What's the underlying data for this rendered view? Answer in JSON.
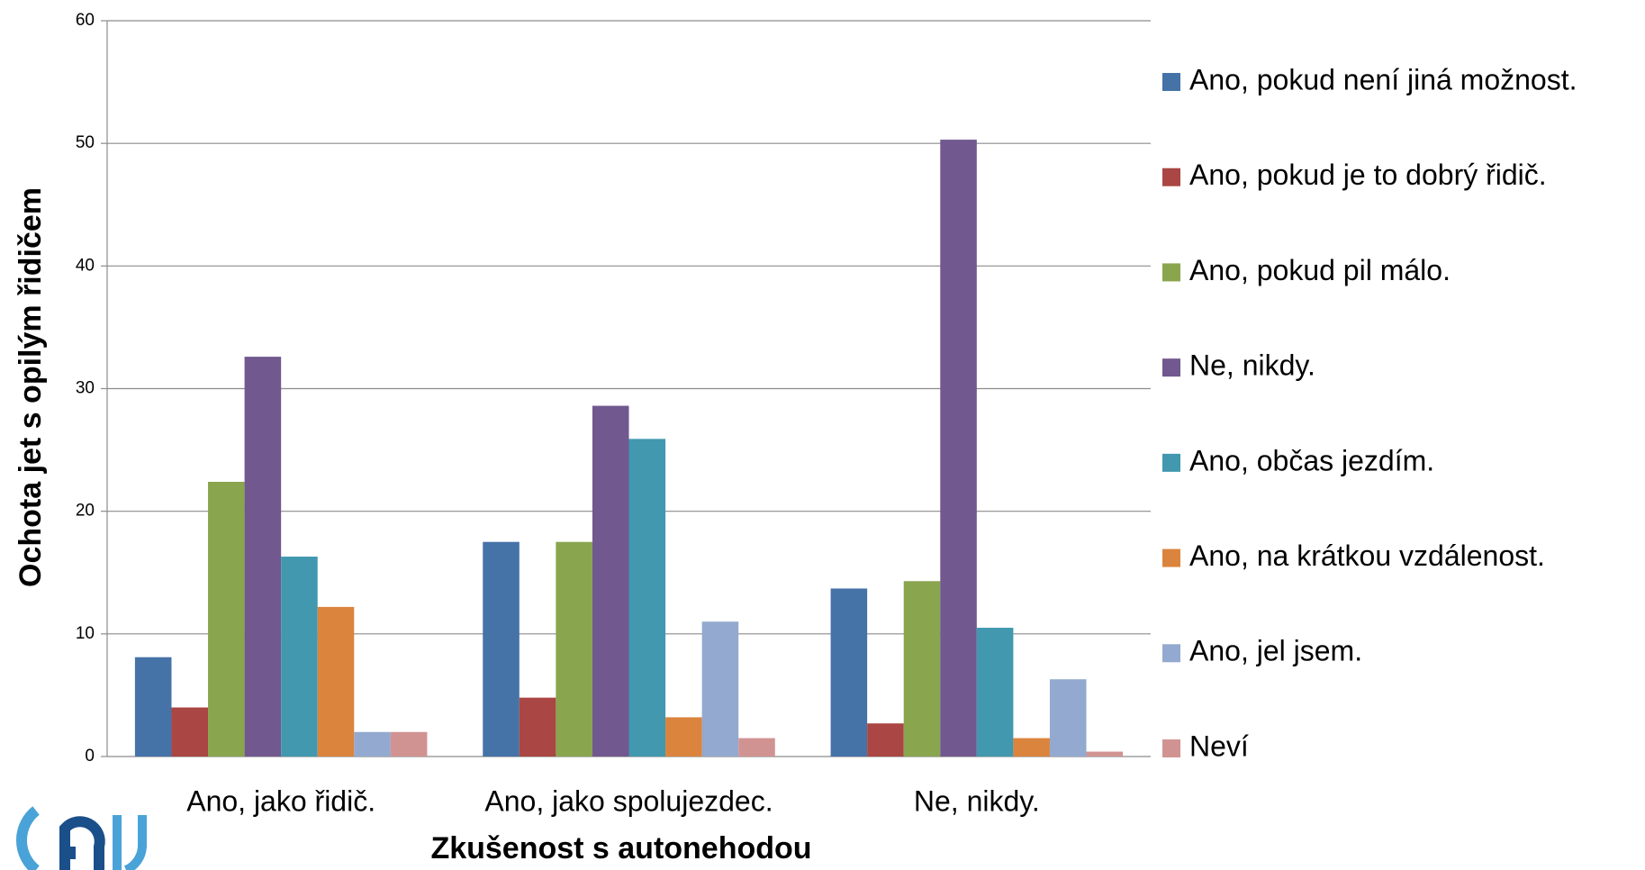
{
  "chart_data": {
    "type": "bar",
    "x_label": "Zkušenost s autonehodou",
    "y_label": "Ochota jet s opilým řidičem",
    "categories": [
      "Ano, jako řidič.",
      "Ano, jako spolujezdec.",
      "Ne, nikdy."
    ],
    "series": [
      {
        "name": "Ano, pokud není jiná možnost.",
        "color": "#4572a7",
        "values": [
          8.1,
          17.5,
          13.7
        ]
      },
      {
        "name": "Ano, pokud je to dobrý řidič.",
        "color": "#aa4643",
        "values": [
          4.0,
          4.8,
          2.7
        ]
      },
      {
        "name": "Ano, pokud pil málo.",
        "color": "#89a54e",
        "values": [
          22.4,
          17.5,
          14.3
        ]
      },
      {
        "name": "Ne, nikdy.",
        "color": "#71588f",
        "values": [
          32.6,
          28.6,
          50.3
        ]
      },
      {
        "name": "Ano, občas jezdím.",
        "color": "#4198af",
        "values": [
          16.3,
          25.9,
          10.5
        ]
      },
      {
        "name": "Ano, na krátkou vzdálenost.",
        "color": "#db843d",
        "values": [
          12.2,
          3.2,
          1.5
        ]
      },
      {
        "name": "Ano, jel jsem.",
        "color": "#93a9cf",
        "values": [
          2.0,
          11.0,
          6.3
        ]
      },
      {
        "name": "Neví",
        "color": "#d19392",
        "values": [
          2.0,
          1.5,
          0.4
        ]
      }
    ],
    "ylim": [
      0,
      60
    ],
    "yticks": [
      0,
      10,
      20,
      30,
      40,
      50,
      60
    ],
    "grid": true,
    "legend": "right"
  }
}
